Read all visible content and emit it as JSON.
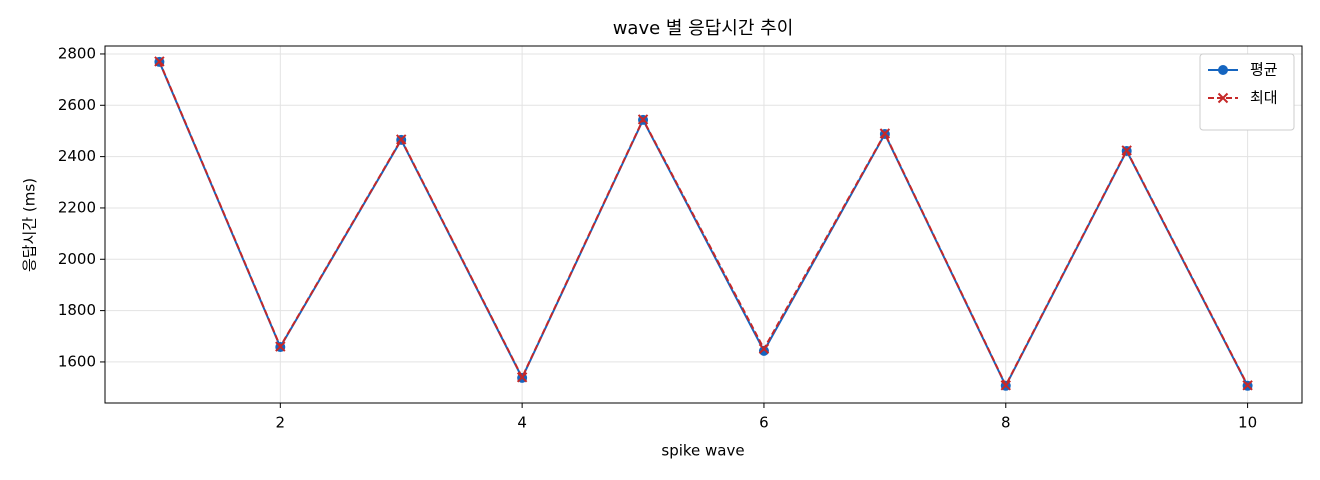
{
  "chart_data": {
    "type": "line",
    "title": "wave 별 응답시간 추이",
    "x_label": "spike wave",
    "y_label": "응답시간 (ms)",
    "x": [
      1,
      2,
      3,
      4,
      5,
      6,
      7,
      8,
      9,
      10
    ],
    "series": [
      {
        "name": "평균",
        "color": "#1565c0",
        "marker": "circle",
        "dash": false,
        "values": [
          2769,
          1658,
          2465,
          1538,
          2543,
          1643,
          2488,
          1507,
          2422,
          1507
        ]
      },
      {
        "name": "최대",
        "color": "#c62828",
        "marker": "x",
        "dash": true,
        "values": [
          2771,
          1660,
          2467,
          1540,
          2545,
          1651,
          2490,
          1509,
          2424,
          1509
        ]
      }
    ],
    "xlim": [
      0.55,
      10.45
    ],
    "xticks": [
      2,
      4,
      6,
      8,
      10
    ],
    "ylim": [
      1440,
      2831
    ],
    "yticks": [
      1600,
      1800,
      2000,
      2200,
      2400,
      2600,
      2800
    ],
    "grid": true,
    "legend": "upper right"
  }
}
